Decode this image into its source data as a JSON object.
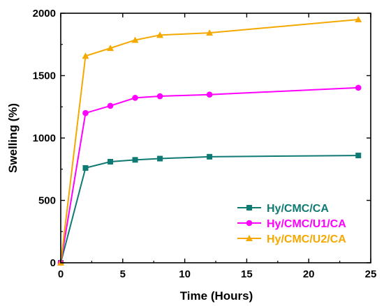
{
  "chart_data": {
    "type": "line",
    "xlabel": "Time (Hours)",
    "ylabel": "Swelling (%)",
    "xlim": [
      0,
      25
    ],
    "ylim": [
      0,
      2000
    ],
    "xticks": [
      0,
      5,
      10,
      15,
      20,
      25
    ],
    "yticks": [
      0,
      500,
      1000,
      1500,
      2000
    ],
    "grid": false,
    "legend_position": "bottom-right",
    "series": [
      {
        "name": "Hy/CMC/CA",
        "color": "#0f7a73",
        "marker": "square",
        "x": [
          0,
          2,
          4,
          6,
          8,
          12,
          24
        ],
        "y": [
          0,
          760,
          810,
          825,
          835,
          850,
          860
        ]
      },
      {
        "name": "Hy/CMC/U1/CA",
        "color": "#ff00ff",
        "marker": "circle",
        "x": [
          0,
          2,
          4,
          6,
          8,
          12,
          24
        ],
        "y": [
          0,
          1200,
          1258,
          1322,
          1335,
          1348,
          1403
        ]
      },
      {
        "name": "Hy/CMC/U2/CA",
        "color": "#f5a800",
        "marker": "triangle",
        "x": [
          0,
          2,
          4,
          6,
          8,
          12,
          24
        ],
        "y": [
          0,
          1657,
          1720,
          1785,
          1825,
          1843,
          1950
        ]
      }
    ]
  }
}
